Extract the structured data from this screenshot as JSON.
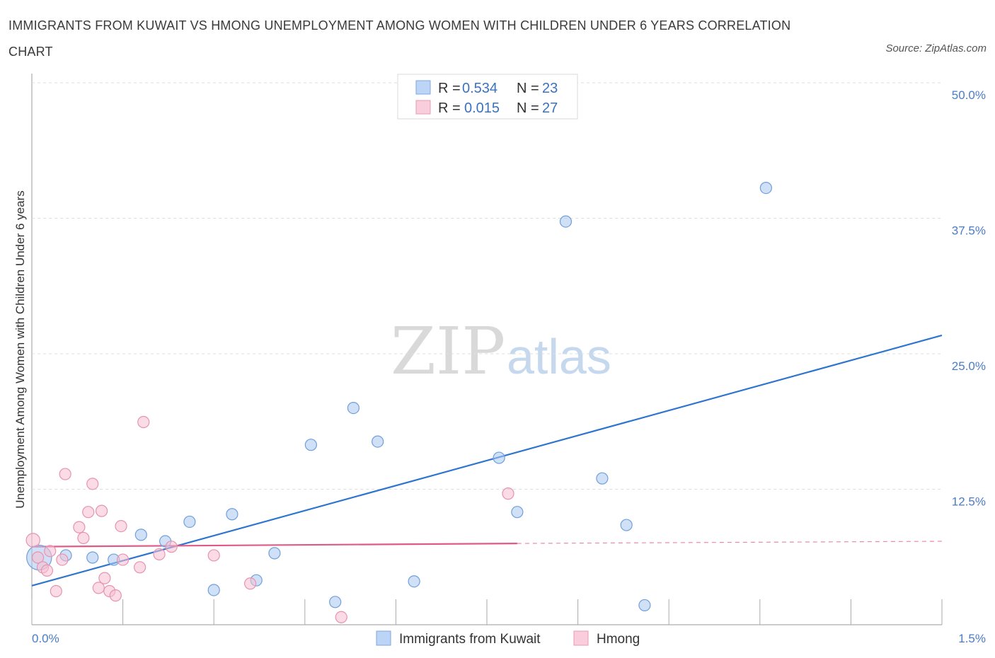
{
  "title": "IMMIGRANTS FROM KUWAIT VS HMONG UNEMPLOYMENT AMONG WOMEN WITH CHILDREN UNDER 6 YEARS CORRELATION CHART",
  "source": "Source: ZipAtlas.com",
  "watermark": {
    "zip": "ZIP",
    "atlas": "atlas"
  },
  "chart_data": {
    "type": "scatter",
    "title": "IMMIGRANTS FROM KUWAIT VS HMONG UNEMPLOYMENT AMONG WOMEN WITH CHILDREN UNDER 6 YEARS CORRELATION CHART",
    "xlabel": "",
    "ylabel": "Unemployment Among Women with Children Under 6 years",
    "xlim": [
      0,
      1.5
    ],
    "ylim": [
      0,
      50
    ],
    "x_tick_labels": {
      "min": "0.0%",
      "max": "1.5%"
    },
    "y_ticks": [
      {
        "value": 12.5,
        "label": "12.5%"
      },
      {
        "value": 25.0,
        "label": "25.0%"
      },
      {
        "value": 37.5,
        "label": "37.5%"
      },
      {
        "value": 50.0,
        "label": "50.0%"
      }
    ],
    "grid": "horizontal dashed",
    "legend": {
      "position": "top-center",
      "rows": [
        {
          "r_label": "R =",
          "r_value": "0.534",
          "n_label": "N =",
          "n_value": "23"
        },
        {
          "r_label": "R =",
          "r_value": "0.015",
          "n_label": "N =",
          "n_value": "27"
        }
      ]
    },
    "series": [
      {
        "name": "Immigrants from Kuwait",
        "color": "#a9c8f0",
        "stroke": "#6f9fdc",
        "line_color": "#2f75d0",
        "trend": {
          "x0": 0.0,
          "y0": 3.6,
          "x1": 1.5,
          "y1": 26.7
        },
        "points": [
          [
            0.012,
            6.2,
            22
          ],
          [
            0.056,
            6.4,
            10
          ],
          [
            0.1,
            6.2,
            10
          ],
          [
            0.135,
            6.0,
            10
          ],
          [
            0.18,
            8.3,
            10
          ],
          [
            0.22,
            7.7,
            10
          ],
          [
            0.26,
            9.5,
            10
          ],
          [
            0.3,
            3.2,
            10
          ],
          [
            0.33,
            10.2,
            10
          ],
          [
            0.37,
            4.1,
            10
          ],
          [
            0.4,
            6.6,
            10
          ],
          [
            0.46,
            16.6,
            10
          ],
          [
            0.5,
            2.1,
            10
          ],
          [
            0.53,
            20.0,
            10
          ],
          [
            0.57,
            16.9,
            10
          ],
          [
            0.63,
            4.0,
            10
          ],
          [
            0.77,
            15.4,
            10
          ],
          [
            0.8,
            10.4,
            10
          ],
          [
            0.88,
            37.2,
            10
          ],
          [
            0.94,
            13.5,
            10
          ],
          [
            0.98,
            9.2,
            10
          ],
          [
            1.01,
            1.8,
            10
          ],
          [
            1.21,
            40.3,
            10
          ]
        ]
      },
      {
        "name": "Hmong",
        "color": "#f7c0d2",
        "stroke": "#e693ae",
        "line_color": "#e05a87",
        "trend": {
          "x0": 0.0,
          "y0": 7.2,
          "x1": 0.8,
          "y1": 7.5,
          "dash_to_x": 1.5,
          "dash_to_y": 7.7
        },
        "points": [
          [
            0.002,
            7.8,
            12
          ],
          [
            0.01,
            6.2,
            10
          ],
          [
            0.018,
            5.3,
            10
          ],
          [
            0.025,
            5.0,
            10
          ],
          [
            0.03,
            6.8,
            10
          ],
          [
            0.04,
            3.1,
            10
          ],
          [
            0.05,
            6.0,
            10
          ],
          [
            0.055,
            13.9,
            10
          ],
          [
            0.078,
            9.0,
            10
          ],
          [
            0.085,
            8.0,
            10
          ],
          [
            0.093,
            10.4,
            10
          ],
          [
            0.1,
            13.0,
            10
          ],
          [
            0.11,
            3.4,
            10
          ],
          [
            0.115,
            10.5,
            10
          ],
          [
            0.12,
            4.3,
            10
          ],
          [
            0.128,
            3.1,
            10
          ],
          [
            0.138,
            2.7,
            10
          ],
          [
            0.147,
            9.1,
            10
          ],
          [
            0.15,
            6.0,
            10
          ],
          [
            0.178,
            5.3,
            10
          ],
          [
            0.184,
            18.7,
            10
          ],
          [
            0.21,
            6.5,
            10
          ],
          [
            0.23,
            7.2,
            10
          ],
          [
            0.3,
            6.4,
            10
          ],
          [
            0.36,
            3.8,
            10
          ],
          [
            0.51,
            0.7,
            10
          ],
          [
            0.785,
            12.1,
            10
          ]
        ]
      }
    ]
  }
}
